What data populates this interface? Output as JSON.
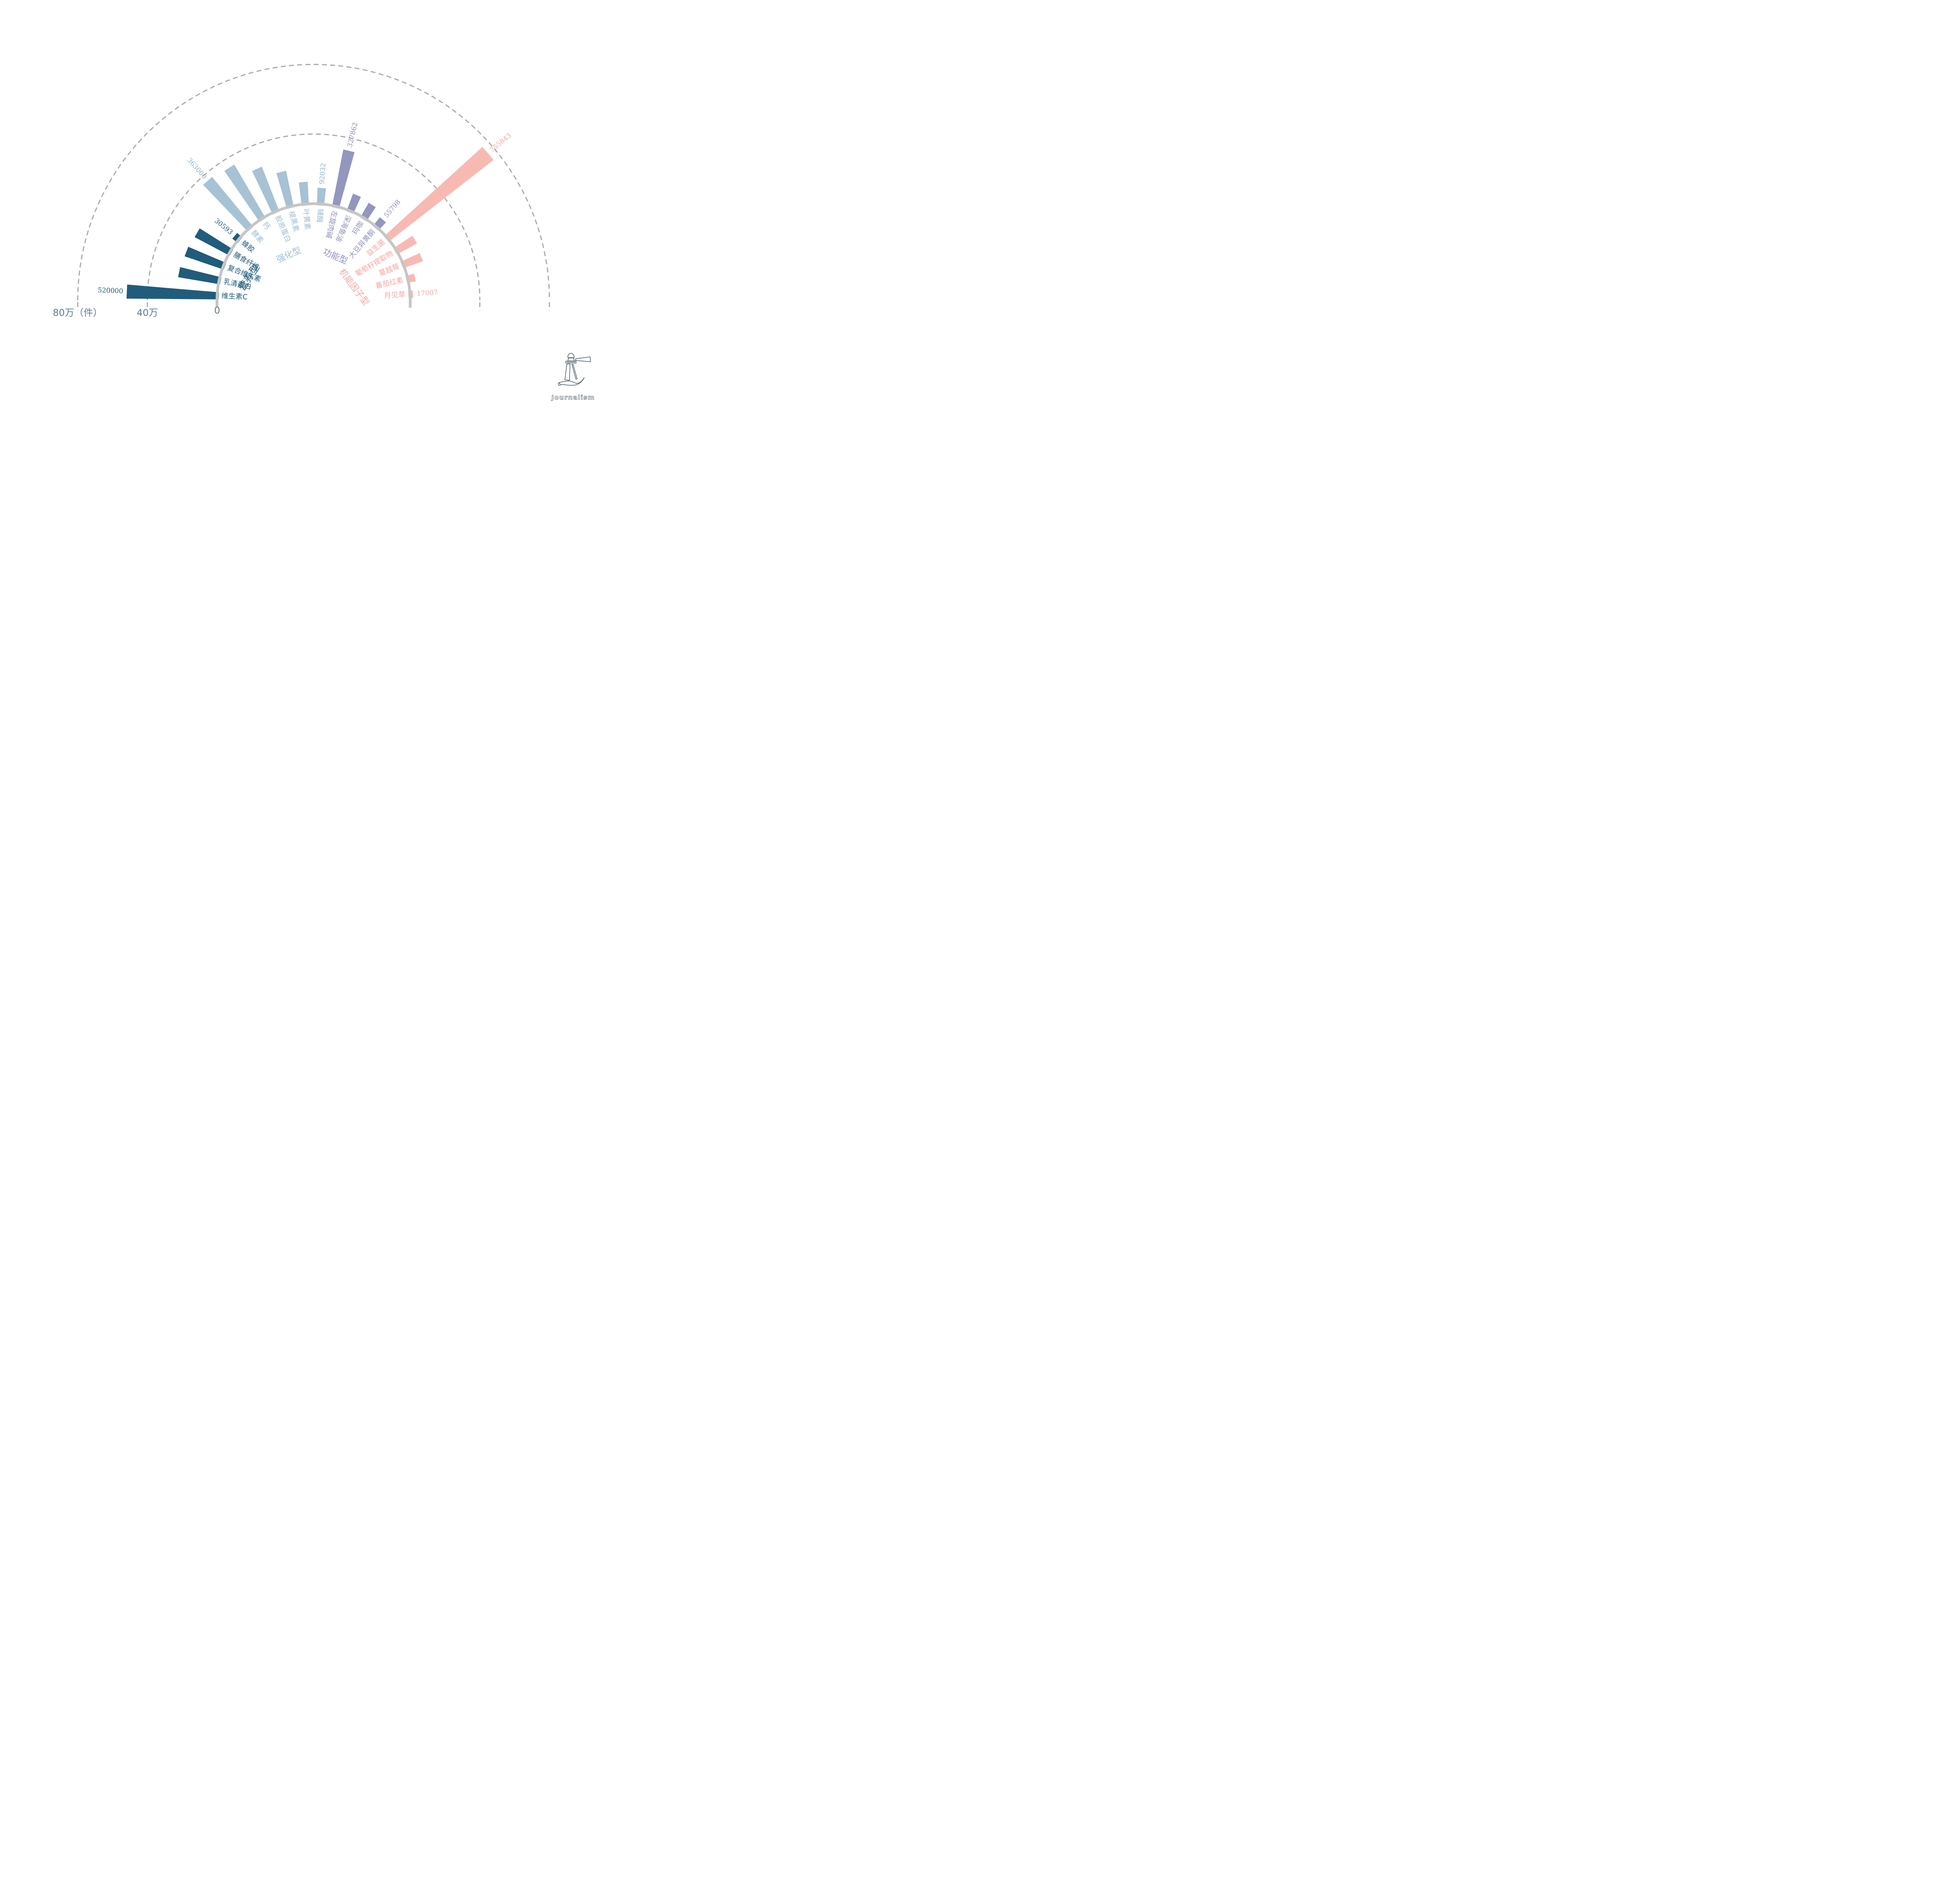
{
  "chart_data": {
    "type": "bar",
    "variant": "polar-half-fan",
    "title": "",
    "unit": "件",
    "rlim": [
      0,
      800000
    ],
    "grid_rings": [
      400000,
      800000
    ],
    "grid_style": "dashed",
    "axis_ticks": [
      {
        "label": "80万（件）",
        "value": 800000
      },
      {
        "label": "40万",
        "value": 400000
      },
      {
        "label": "0",
        "value": 0
      }
    ],
    "colors": {
      "background": "#FFFFFF",
      "grid_arc": "#ABABAB",
      "base_ring": "#C5C5C5",
      "axis_text": "#5F7D92"
    },
    "groups": [
      {
        "name": "营养型",
        "bar_color": "#215C7D",
        "item_text_color": "#215C7D",
        "value_text_color": "#215C7D",
        "items": [
          {
            "label": "维生素C",
            "value": 520000,
            "value_label": "520000"
          },
          {
            "label": "乳清蛋白",
            "value": 235000,
            "value_label": null
          },
          {
            "label": "复合维生素",
            "value": 228000,
            "value_label": null
          },
          {
            "label": "膳食纤维",
            "value": 219000,
            "value_label": null
          },
          {
            "label": "蜂胶",
            "value": 30593,
            "value_label": "30593"
          }
        ]
      },
      {
        "name": "强化型",
        "bar_color": "#A6C2D4",
        "item_text_color": "#9FBDD2",
        "value_text_color": "#8FB2CA",
        "items": [
          {
            "label": "酵素",
            "value": 363000,
            "value_label": "363000"
          },
          {
            "label": "钙",
            "value": 348000,
            "value_label": null
          },
          {
            "label": "胶原蛋白",
            "value": 268000,
            "value_label": null
          },
          {
            "label": "褪黑素",
            "value": 206000,
            "value_label": null
          },
          {
            "label": "叶黄素",
            "value": 127000,
            "value_label": null
          },
          {
            "label": "辅酶",
            "value": 92032,
            "value_label": "92032"
          }
        ]
      },
      {
        "name": "功能型",
        "bar_color": "#9396BD",
        "item_text_color": "#8F93BA",
        "value_text_color": "#8A8EB6",
        "items": [
          {
            "label": "左旋肉碱",
            "value": 327862,
            "value_label": "327862"
          },
          {
            "label": "深海鱼油",
            "value": 98000,
            "value_label": null
          },
          {
            "label": "玛咖",
            "value": 88000,
            "value_label": null
          },
          {
            "label": "大豆异黄酮",
            "value": 55798,
            "value_label": "55798"
          }
        ]
      },
      {
        "name": "机能因子型",
        "bar_color": "#F8B9B3",
        "item_text_color": "#F4A8A2",
        "value_text_color": "#F4A8A2",
        "items": [
          {
            "label": "益生菌",
            "value": 755843,
            "value_label": "755843"
          },
          {
            "label": "葡萄籽提取物",
            "value": 123000,
            "value_label": null
          },
          {
            "label": "蔓越莓",
            "value": 112000,
            "value_label": null
          },
          {
            "label": "番茄红素",
            "value": 42000,
            "value_label": null
          },
          {
            "label": "月见草",
            "value": 17007,
            "value_label": "17007"
          }
        ]
      }
    ]
  },
  "logo": {
    "text": "Journalism",
    "icon": "lighthouse-with-beam-and-wave",
    "outline_color": "#4E5D68"
  }
}
